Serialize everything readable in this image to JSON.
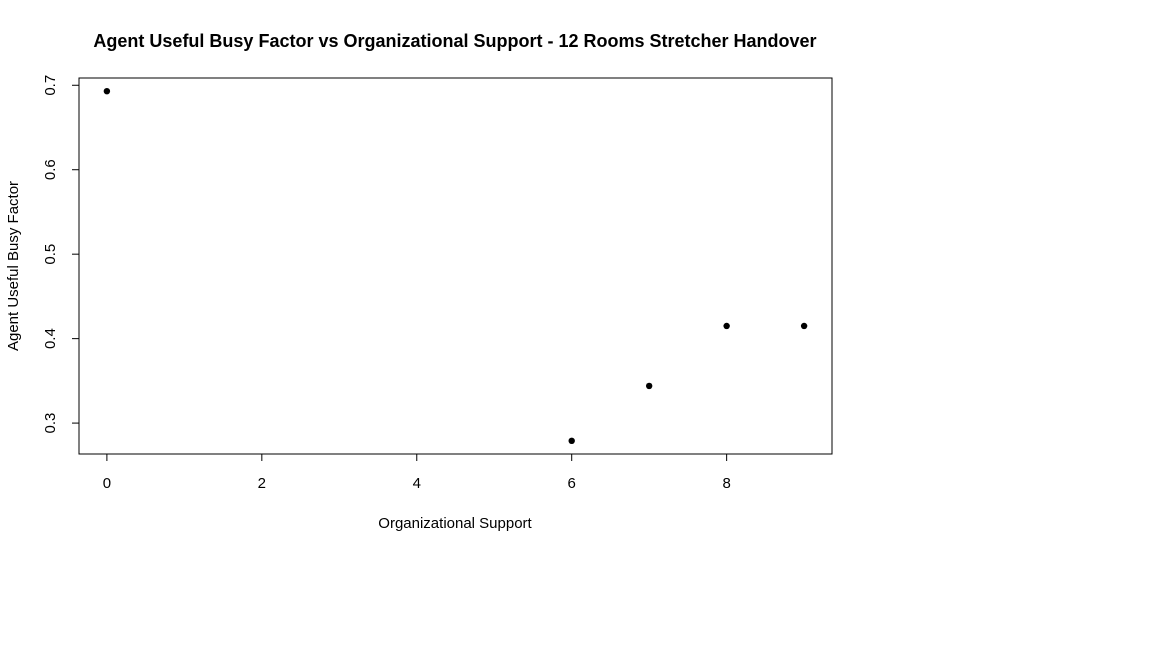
{
  "chart_data": {
    "type": "scatter",
    "title": "Agent Useful Busy Factor vs Organizational Support - 12 Rooms Stretcher Handover",
    "xlabel": "Organizational Support",
    "ylabel": "Agent Useful Busy Factor",
    "x": [
      0,
      6,
      7,
      8,
      9
    ],
    "y": [
      0.693,
      0.279,
      0.344,
      0.415,
      0.415
    ],
    "xlim": [
      -0.36,
      9.36
    ],
    "ylim": [
      0.2634,
      0.7086
    ],
    "xticks": [
      0,
      2,
      4,
      6,
      8
    ],
    "yticks": [
      0.3,
      0.4,
      0.5,
      0.6,
      0.7
    ],
    "xtick_labels": [
      "0",
      "2",
      "4",
      "6",
      "8"
    ],
    "ytick_labels": [
      "0.3",
      "0.4",
      "0.5",
      "0.6",
      "0.7"
    ],
    "grid": false,
    "marker_color": "#000000"
  }
}
